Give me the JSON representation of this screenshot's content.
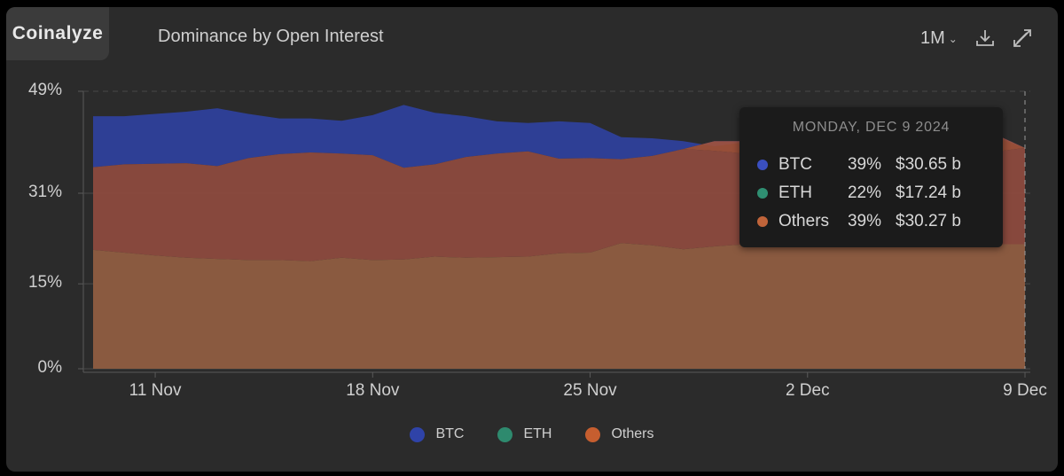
{
  "header": {
    "brand": "Coinalyze",
    "title": "Dominance by Open Interest",
    "period": "1M"
  },
  "colors": {
    "btc": "#2f43a8",
    "eth": "#2e8a6e",
    "others": "#c65e2f",
    "grid": "#4a4a4a",
    "panel": "#2b2b2b"
  },
  "tooltip": {
    "date": "MONDAY, DEC 9 2024",
    "rows": [
      {
        "name": "BTC",
        "pct": "39%",
        "value": "$30.65 b",
        "color": "#3a4fc0"
      },
      {
        "name": "ETH",
        "pct": "22%",
        "value": "$17.24 b",
        "color": "#2f8f72"
      },
      {
        "name": "Others",
        "pct": "39%",
        "value": "$30.27 b",
        "color": "#c0643a"
      }
    ]
  },
  "chart_data": {
    "type": "area",
    "ylim": [
      0,
      49
    ],
    "yticks": [
      {
        "v": 0,
        "label": "0%"
      },
      {
        "v": 15,
        "label": "15%"
      },
      {
        "v": 31,
        "label": "31%"
      },
      {
        "v": 49,
        "label": "49%"
      }
    ],
    "xticks": [
      {
        "i": 2,
        "label": "11 Nov"
      },
      {
        "i": 9,
        "label": "18 Nov"
      },
      {
        "i": 16,
        "label": "25 Nov"
      },
      {
        "i": 23,
        "label": "2 Dec"
      },
      {
        "i": 30,
        "label": "9 Dec"
      }
    ],
    "x": [
      "9 Nov",
      "10 Nov",
      "11 Nov",
      "12 Nov",
      "13 Nov",
      "14 Nov",
      "15 Nov",
      "16 Nov",
      "17 Nov",
      "18 Nov",
      "19 Nov",
      "20 Nov",
      "21 Nov",
      "22 Nov",
      "23 Nov",
      "24 Nov",
      "25 Nov",
      "26 Nov",
      "27 Nov",
      "28 Nov",
      "29 Nov",
      "30 Nov",
      "1 Dec",
      "2 Dec",
      "3 Dec",
      "4 Dec",
      "5 Dec",
      "6 Dec",
      "7 Dec",
      "8 Dec",
      "9 Dec"
    ],
    "series": [
      {
        "name": "Others",
        "color": "#c65e2f",
        "values": [
          44.6,
          44.6,
          45.0,
          45.4,
          46.0,
          45.0,
          44.2,
          44.2,
          43.8,
          44.8,
          46.6,
          45.2,
          44.6,
          43.7,
          43.4,
          43.7,
          43.4,
          40.9,
          40.7,
          40.2,
          39.3,
          40.0,
          39.8,
          39.5,
          39.0,
          39.3,
          39.6,
          40.0,
          40.8,
          41.0,
          39.0
        ],
        "btc_upper": [
          35.6,
          36.1,
          36.2,
          36.3,
          35.8,
          37.2,
          37.9,
          38.2,
          38.0,
          37.7,
          35.5,
          36.1,
          37.4,
          38.0,
          38.4,
          37.1,
          37.2,
          37.0,
          37.6,
          38.8,
          40.2,
          40.2,
          41.0,
          40.5,
          39.9,
          40.0,
          40.3,
          40.7,
          41.2,
          41.5,
          39.0
        ]
      },
      {
        "name": "ETH",
        "color": "#2e8a6e",
        "values": [
          35.6,
          36.1,
          36.2,
          36.3,
          35.8,
          37.2,
          37.9,
          38.2,
          38.0,
          37.7,
          35.5,
          36.1,
          37.4,
          38.0,
          38.4,
          37.1,
          37.2,
          37.0,
          37.6,
          38.8,
          38.5,
          38.0,
          37.5,
          37.2,
          37.0,
          37.2,
          37.4,
          37.7,
          38.0,
          38.3,
          39.0
        ],
        "base": [
          21.0,
          20.5,
          20.0,
          19.6,
          19.4,
          19.2,
          19.2,
          19.0,
          19.6,
          19.2,
          19.3,
          19.8,
          19.6,
          19.7,
          19.8,
          20.4,
          20.5,
          22.2,
          21.8,
          21.1,
          21.6,
          22.0,
          22.0,
          21.8,
          21.6,
          21.8,
          22.0,
          22.0,
          22.0,
          22.0,
          22.0
        ]
      }
    ],
    "legend": [
      {
        "name": "BTC",
        "color": "#2f43a8"
      },
      {
        "name": "ETH",
        "color": "#2e8a6e"
      },
      {
        "name": "Others",
        "color": "#c65e2f"
      }
    ]
  }
}
